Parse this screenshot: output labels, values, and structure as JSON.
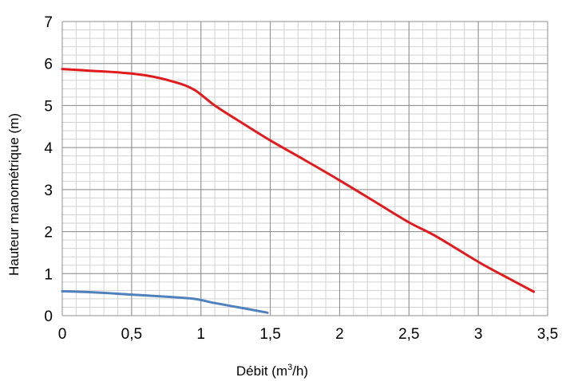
{
  "chart_data": {
    "type": "line",
    "title": "",
    "xlabel": "Débit (m³/h)",
    "xlabel_base": "Débit (m",
    "xlabel_sup": "3",
    "xlabel_tail": "/h)",
    "ylabel": "Hauteur manométrique (m)",
    "xlim": [
      0,
      3.5
    ],
    "ylim": [
      0,
      7
    ],
    "xticks": [
      "0",
      "0,5",
      "1",
      "1,5",
      "2",
      "2,5",
      "3",
      "3,5"
    ],
    "yticks": [
      "0",
      "1",
      "2",
      "3",
      "4",
      "5",
      "6",
      "7"
    ],
    "grid": true,
    "legend": "none",
    "series": [
      {
        "color": "#e31a1c",
        "x": [
          0,
          0.2,
          0.4,
          0.6,
          0.8,
          0.95,
          1.1,
          1.3,
          1.5,
          1.75,
          2.0,
          2.25,
          2.5,
          2.7,
          3.0,
          3.2,
          3.4
        ],
        "y": [
          5.87,
          5.83,
          5.79,
          5.72,
          5.57,
          5.38,
          5.0,
          4.58,
          4.17,
          3.7,
          3.22,
          2.72,
          2.22,
          1.88,
          1.28,
          0.92,
          0.57
        ]
      },
      {
        "color": "#4f81bd",
        "x": [
          0,
          0.25,
          0.5,
          0.75,
          0.95,
          1.1,
          1.3,
          1.48
        ],
        "y": [
          0.58,
          0.55,
          0.5,
          0.45,
          0.4,
          0.3,
          0.18,
          0.07
        ]
      }
    ]
  }
}
